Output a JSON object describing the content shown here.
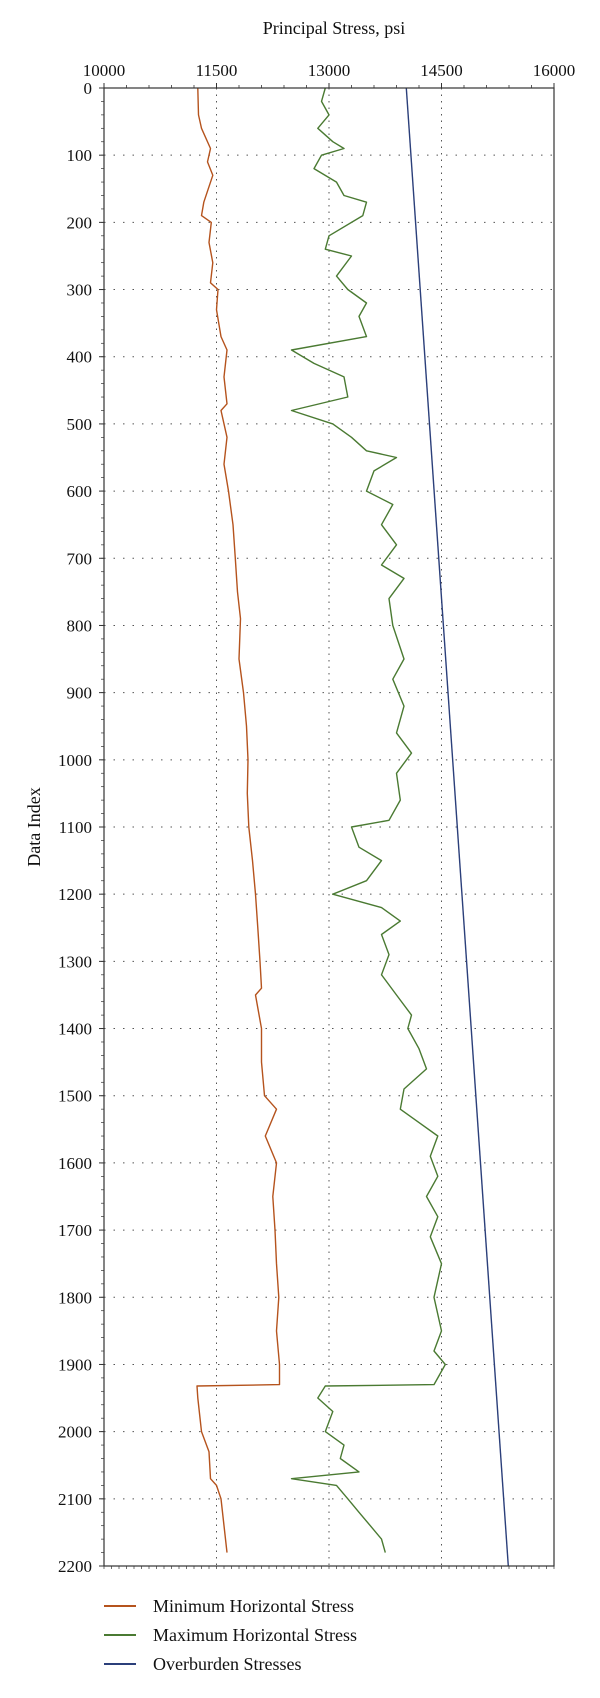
{
  "chart_data": {
    "type": "line",
    "xlabel": "Principal Stress, psi",
    "ylabel": "Data Index",
    "xlim": [
      10000,
      16000
    ],
    "ylim": [
      0,
      2200
    ],
    "x_ticks": [
      "10000",
      "11500",
      "13000",
      "14500",
      "16000"
    ],
    "x_tick_values": [
      10000,
      11500,
      13000,
      14500,
      16000
    ],
    "y_ticks": [
      "0",
      "100",
      "200",
      "300",
      "400",
      "500",
      "600",
      "700",
      "800",
      "900",
      "1000",
      "1100",
      "1200",
      "1300",
      "1400",
      "1500",
      "1600",
      "1700",
      "1800",
      "1900",
      "2000",
      "2100",
      "2200"
    ],
    "y_tick_values": [
      0,
      100,
      200,
      300,
      400,
      500,
      600,
      700,
      800,
      900,
      1000,
      1100,
      1200,
      1300,
      1400,
      1500,
      1600,
      1700,
      1800,
      1900,
      2000,
      2100,
      2200
    ],
    "grid": true,
    "legend_position": "bottom",
    "series": [
      {
        "name": "Minimum Horizontal Stress",
        "color": "#b5531d",
        "points": [
          [
            11250,
            0
          ],
          [
            11260,
            40
          ],
          [
            11300,
            60
          ],
          [
            11420,
            90
          ],
          [
            11380,
            110
          ],
          [
            11450,
            130
          ],
          [
            11330,
            170
          ],
          [
            11300,
            190
          ],
          [
            11430,
            200
          ],
          [
            11400,
            230
          ],
          [
            11450,
            260
          ],
          [
            11420,
            290
          ],
          [
            11520,
            300
          ],
          [
            11500,
            330
          ],
          [
            11560,
            370
          ],
          [
            11640,
            390
          ],
          [
            11600,
            430
          ],
          [
            11640,
            470
          ],
          [
            11560,
            480
          ],
          [
            11640,
            520
          ],
          [
            11600,
            560
          ],
          [
            11660,
            600
          ],
          [
            11720,
            650
          ],
          [
            11750,
            700
          ],
          [
            11780,
            750
          ],
          [
            11820,
            790
          ],
          [
            11800,
            850
          ],
          [
            11860,
            900
          ],
          [
            11900,
            950
          ],
          [
            11920,
            1000
          ],
          [
            11910,
            1050
          ],
          [
            11930,
            1100
          ],
          [
            11980,
            1150
          ],
          [
            12020,
            1200
          ],
          [
            12050,
            1250
          ],
          [
            12080,
            1300
          ],
          [
            12100,
            1340
          ],
          [
            12020,
            1350
          ],
          [
            12100,
            1400
          ],
          [
            12100,
            1450
          ],
          [
            12140,
            1500
          ],
          [
            12300,
            1520
          ],
          [
            12150,
            1560
          ],
          [
            12300,
            1600
          ],
          [
            12250,
            1650
          ],
          [
            12280,
            1700
          ],
          [
            12300,
            1750
          ],
          [
            12330,
            1800
          ],
          [
            12300,
            1850
          ],
          [
            12340,
            1900
          ],
          [
            12340,
            1930
          ],
          [
            11240,
            1932
          ],
          [
            11250,
            1950
          ],
          [
            11300,
            2000
          ],
          [
            11400,
            2030
          ],
          [
            11420,
            2070
          ],
          [
            11500,
            2080
          ],
          [
            11560,
            2100
          ],
          [
            11600,
            2140
          ],
          [
            11640,
            2180
          ]
        ]
      },
      {
        "name": "Maximum Horizontal Stress",
        "color": "#4a7a32",
        "points": [
          [
            12950,
            0
          ],
          [
            12900,
            20
          ],
          [
            13000,
            40
          ],
          [
            12850,
            60
          ],
          [
            13050,
            80
          ],
          [
            13200,
            90
          ],
          [
            12900,
            100
          ],
          [
            12800,
            120
          ],
          [
            13100,
            140
          ],
          [
            13200,
            160
          ],
          [
            13500,
            170
          ],
          [
            13450,
            190
          ],
          [
            13000,
            220
          ],
          [
            12950,
            240
          ],
          [
            13300,
            250
          ],
          [
            13100,
            280
          ],
          [
            13250,
            300
          ],
          [
            13500,
            320
          ],
          [
            13400,
            340
          ],
          [
            13500,
            370
          ],
          [
            12500,
            390
          ],
          [
            12800,
            410
          ],
          [
            13200,
            430
          ],
          [
            13250,
            460
          ],
          [
            12500,
            480
          ],
          [
            13050,
            500
          ],
          [
            13300,
            520
          ],
          [
            13500,
            540
          ],
          [
            13900,
            550
          ],
          [
            13600,
            570
          ],
          [
            13500,
            600
          ],
          [
            13850,
            620
          ],
          [
            13700,
            650
          ],
          [
            13900,
            680
          ],
          [
            13700,
            710
          ],
          [
            14000,
            730
          ],
          [
            13800,
            760
          ],
          [
            13850,
            800
          ],
          [
            14000,
            850
          ],
          [
            13850,
            880
          ],
          [
            14000,
            920
          ],
          [
            13900,
            960
          ],
          [
            14100,
            990
          ],
          [
            13900,
            1020
          ],
          [
            13950,
            1060
          ],
          [
            13800,
            1090
          ],
          [
            13300,
            1100
          ],
          [
            13400,
            1130
          ],
          [
            13700,
            1150
          ],
          [
            13500,
            1180
          ],
          [
            13050,
            1200
          ],
          [
            13700,
            1220
          ],
          [
            13950,
            1240
          ],
          [
            13700,
            1260
          ],
          [
            13800,
            1290
          ],
          [
            13700,
            1320
          ],
          [
            13900,
            1350
          ],
          [
            14100,
            1380
          ],
          [
            14050,
            1400
          ],
          [
            14200,
            1430
          ],
          [
            14300,
            1460
          ],
          [
            14000,
            1490
          ],
          [
            13950,
            1520
          ],
          [
            14200,
            1540
          ],
          [
            14450,
            1560
          ],
          [
            14350,
            1590
          ],
          [
            14450,
            1620
          ],
          [
            14300,
            1650
          ],
          [
            14450,
            1680
          ],
          [
            14350,
            1710
          ],
          [
            14500,
            1750
          ],
          [
            14400,
            1800
          ],
          [
            14500,
            1850
          ],
          [
            14400,
            1880
          ],
          [
            14550,
            1900
          ],
          [
            14450,
            1920
          ],
          [
            14400,
            1930
          ],
          [
            12950,
            1932
          ],
          [
            12850,
            1950
          ],
          [
            13050,
            1970
          ],
          [
            12950,
            2000
          ],
          [
            13200,
            2020
          ],
          [
            13150,
            2040
          ],
          [
            13400,
            2060
          ],
          [
            12500,
            2070
          ],
          [
            13100,
            2080
          ],
          [
            13250,
            2100
          ],
          [
            13400,
            2120
          ],
          [
            13550,
            2140
          ],
          [
            13700,
            2160
          ],
          [
            13750,
            2180
          ]
        ]
      },
      {
        "name": "Overburden Stresses",
        "color": "#2b3f7a",
        "points": [
          [
            14030,
            0
          ],
          [
            15390,
            2200
          ]
        ]
      }
    ]
  },
  "legend": {
    "items": [
      {
        "label": "Minimum Horizontal Stress",
        "color": "#b5531d"
      },
      {
        "label": "Maximum Horizontal Stress",
        "color": "#4a7a32"
      },
      {
        "label": "Overburden Stresses",
        "color": "#2b3f7a"
      }
    ]
  }
}
